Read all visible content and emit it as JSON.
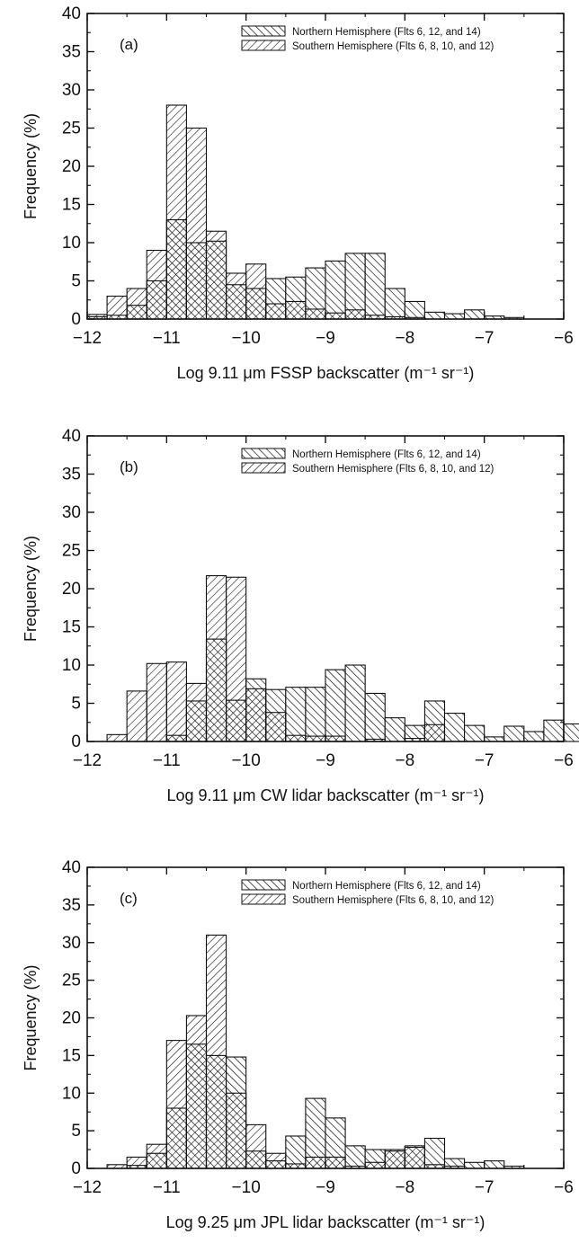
{
  "chart_data": [
    {
      "type": "bar",
      "panel_label": "(a)",
      "xlabel": "Log 9.11 μm FSSP backscatter (m⁻¹ sr⁻¹)",
      "ylabel": "Frequency (%)",
      "xlim": [
        -12,
        -6
      ],
      "ylim": [
        0,
        40
      ],
      "xticks": [
        -12,
        -11,
        -10,
        -9,
        -8,
        -7,
        -6
      ],
      "xtick_labels": [
        "−12",
        "−11",
        "−10",
        "−9",
        "−8",
        "−7",
        "−6"
      ],
      "yticks": [
        0,
        5,
        10,
        15,
        20,
        25,
        30,
        35,
        40
      ],
      "yminor": true,
      "bin_width": 0.25,
      "legend_position": "top-right",
      "series": [
        {
          "name": "Northern Hemisphere (Flts 6, 12, and 14)",
          "hatch": "backslash",
          "bins": [
            [
              -12,
              0.3
            ],
            [
              -11.75,
              0.5
            ],
            [
              -11.5,
              1.8
            ],
            [
              -11.25,
              5
            ],
            [
              -11,
              13
            ],
            [
              -10.75,
              10
            ],
            [
              -10.5,
              10.2
            ],
            [
              -10.25,
              4.5
            ],
            [
              -10,
              4
            ],
            [
              -9.75,
              5.3
            ],
            [
              -9.5,
              5.5
            ],
            [
              -9.25,
              6.7
            ],
            [
              -9,
              7.6
            ],
            [
              -8.75,
              8.6
            ],
            [
              -8.5,
              8.6
            ],
            [
              -8.25,
              4
            ],
            [
              -8,
              2.3
            ],
            [
              -7.75,
              0.9
            ],
            [
              -7.5,
              0.7
            ],
            [
              -7.25,
              1.2
            ],
            [
              -7,
              0.4
            ],
            [
              -6.75,
              0.2
            ]
          ]
        },
        {
          "name": "Southern Hemisphere (Flts 6, 8, 10, and 12)",
          "hatch": "slash",
          "bins": [
            [
              -12,
              0.6
            ],
            [
              -11.75,
              3
            ],
            [
              -11.5,
              4
            ],
            [
              -11.25,
              9
            ],
            [
              -11,
              28
            ],
            [
              -10.75,
              25
            ],
            [
              -10.5,
              11.5
            ],
            [
              -10.25,
              6
            ],
            [
              -10,
              7.2
            ],
            [
              -9.75,
              2
            ],
            [
              -9.5,
              2.3
            ],
            [
              -9.25,
              1.3
            ],
            [
              -9,
              0.8
            ],
            [
              -8.75,
              1.2
            ],
            [
              -8.5,
              0.5
            ],
            [
              -8.25,
              0.3
            ],
            [
              -8,
              0.2
            ]
          ]
        }
      ]
    },
    {
      "type": "bar",
      "panel_label": "(b)",
      "xlabel": "Log 9.11 μm CW lidar backscatter (m⁻¹ sr⁻¹)",
      "ylabel": "Frequency (%)",
      "xlim": [
        -12,
        -6
      ],
      "ylim": [
        0,
        40
      ],
      "xticks": [
        -12,
        -11,
        -10,
        -9,
        -8,
        -7,
        -6
      ],
      "xtick_labels": [
        "−12",
        "−11",
        "−10",
        "−9",
        "−8",
        "−7",
        "−6"
      ],
      "yticks": [
        0,
        5,
        10,
        15,
        20,
        25,
        30,
        35,
        40
      ],
      "yminor": true,
      "bin_width": 0.25,
      "legend_position": "top-right",
      "series": [
        {
          "name": "Northern Hemisphere (Flts 6, 12, and 14)",
          "hatch": "backslash",
          "bins": [
            [
              -11,
              0.8
            ],
            [
              -10.75,
              5.3
            ],
            [
              -10.5,
              13.4
            ],
            [
              -10.25,
              5.4
            ],
            [
              -10,
              8.2
            ],
            [
              -9.75,
              6.8
            ],
            [
              -9.5,
              7.1
            ],
            [
              -9.25,
              7.1
            ],
            [
              -9,
              9.4
            ],
            [
              -8.75,
              10
            ],
            [
              -8.5,
              6.3
            ],
            [
              -8.25,
              3.1
            ],
            [
              -8,
              2.1
            ],
            [
              -7.75,
              5.3
            ],
            [
              -7.5,
              3.7
            ],
            [
              -7.25,
              2.1
            ],
            [
              -7,
              0.6
            ],
            [
              -6.75,
              2
            ],
            [
              -6.5,
              1.3
            ],
            [
              -6.25,
              2.8
            ],
            [
              -6,
              2.3
            ]
          ]
        },
        {
          "name": "Southern Hemisphere (Flts 6, 8, 10, and 12)",
          "hatch": "slash",
          "bins": [
            [
              -11.75,
              0.9
            ],
            [
              -11.5,
              6.6
            ],
            [
              -11.25,
              10.2
            ],
            [
              -11,
              10.4
            ],
            [
              -10.75,
              7.6
            ],
            [
              -10.5,
              21.7
            ],
            [
              -10.25,
              21.5
            ],
            [
              -10,
              6.9
            ],
            [
              -9.75,
              3.8
            ],
            [
              -9.5,
              0.8
            ],
            [
              -9.25,
              0.7
            ],
            [
              -9,
              0.7
            ],
            [
              -8.5,
              0.3
            ],
            [
              -8,
              0.4
            ],
            [
              -7.75,
              2.2
            ]
          ]
        }
      ]
    },
    {
      "type": "bar",
      "panel_label": "(c)",
      "xlabel": "Log 9.25 μm JPL lidar backscatter (m⁻¹ sr⁻¹)",
      "ylabel": "Frequency (%)",
      "xlim": [
        -12,
        -6
      ],
      "ylim": [
        0,
        40
      ],
      "xticks": [
        -12,
        -11,
        -10,
        -9,
        -8,
        -7,
        -6
      ],
      "xtick_labels": [
        "−12",
        "−11",
        "−10",
        "−9",
        "−8",
        "−7",
        "−6"
      ],
      "yticks": [
        0,
        5,
        10,
        15,
        20,
        25,
        30,
        35,
        40
      ],
      "yminor": true,
      "bin_width": 0.25,
      "legend_position": "top-right",
      "series": [
        {
          "name": "Northern Hemisphere (Flts 6, 12, and 14)",
          "hatch": "backslash",
          "bins": [
            [
              -11.5,
              0.4
            ],
            [
              -11.25,
              2
            ],
            [
              -11,
              8
            ],
            [
              -10.75,
              16.5
            ],
            [
              -10.5,
              15
            ],
            [
              -10.25,
              14.8
            ],
            [
              -10,
              2.3
            ],
            [
              -9.75,
              1
            ],
            [
              -9.5,
              4.3
            ],
            [
              -9.25,
              9.3
            ],
            [
              -9,
              6.7
            ],
            [
              -8.75,
              3
            ],
            [
              -8.5,
              2.5
            ],
            [
              -8.25,
              2.3
            ],
            [
              -8,
              3
            ],
            [
              -7.75,
              4
            ],
            [
              -7.5,
              1.3
            ],
            [
              -7.25,
              0.8
            ],
            [
              -7,
              1
            ],
            [
              -6.75,
              0.3
            ]
          ]
        },
        {
          "name": "Southern Hemisphere (Flts 6, 8, 10, and 12)",
          "hatch": "slash",
          "bins": [
            [
              -11.75,
              0.5
            ],
            [
              -11.5,
              1.5
            ],
            [
              -11.25,
              3.2
            ],
            [
              -11,
              17
            ],
            [
              -10.75,
              20.3
            ],
            [
              -10.5,
              31
            ],
            [
              -10.25,
              10
            ],
            [
              -10,
              5.8
            ],
            [
              -9.75,
              2
            ],
            [
              -9.5,
              0.6
            ],
            [
              -9.25,
              1.5
            ],
            [
              -9,
              1.5
            ],
            [
              -8.75,
              0.3
            ],
            [
              -8.5,
              0.8
            ],
            [
              -8.25,
              2.5
            ],
            [
              -8,
              2.8
            ],
            [
              -7.75,
              0.5
            ],
            [
              -7.5,
              0.3
            ]
          ]
        }
      ]
    }
  ]
}
